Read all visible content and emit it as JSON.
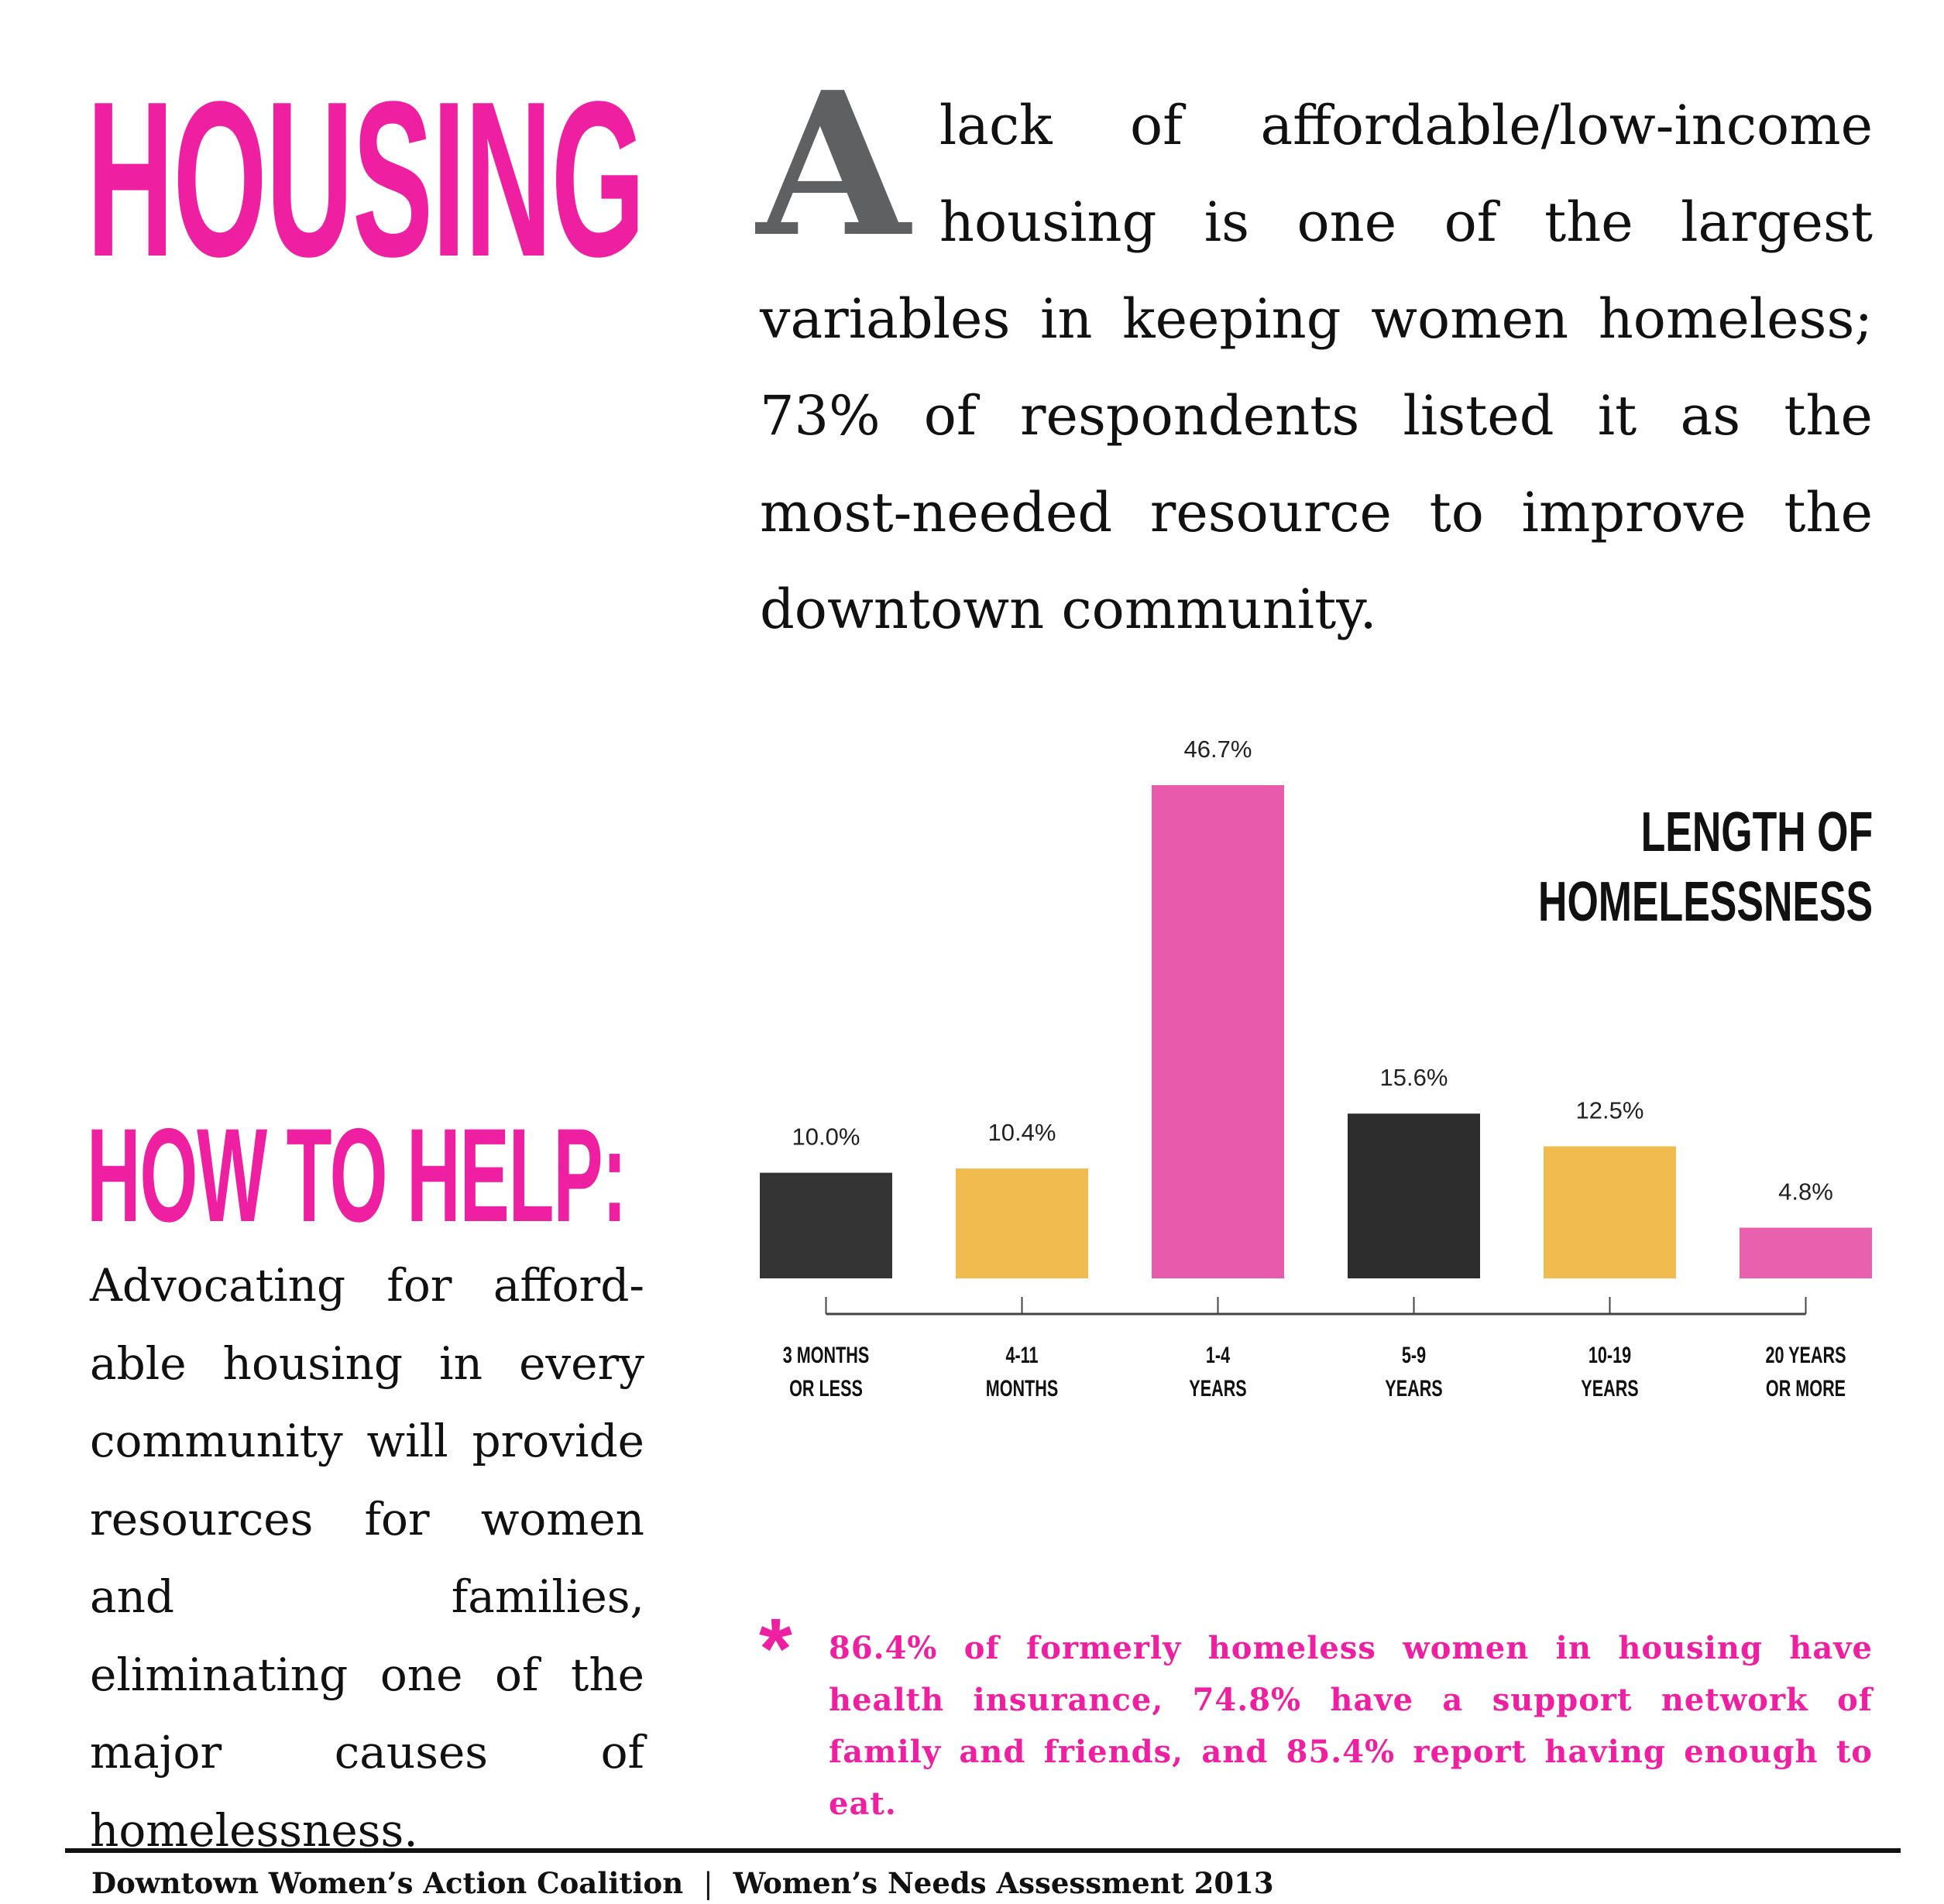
{
  "header": {
    "title": "HOUSING"
  },
  "intro": {
    "drop_cap": "A",
    "text": "lack of affordable/low-income housing is one of the largest variables in keeping women homeless; 73% of respondents listed it as the most-needed resource to improve the downtown community."
  },
  "help": {
    "title": "HOW TO HELP:",
    "text": "Advocating for afford-able housing in every community will provide resources for women and families, eliminating one of the major causes of homelessness."
  },
  "chart_data": {
    "type": "bar",
    "title_lines": [
      "LENGTH OF",
      "HOMELESSNESS"
    ],
    "categories": [
      [
        "3 MONTHS",
        "OR LESS"
      ],
      [
        "4-11",
        "MONTHS"
      ],
      [
        "1-4",
        "YEARS"
      ],
      [
        "5-9",
        "YEARS"
      ],
      [
        "10-19",
        "YEARS"
      ],
      [
        "20 YEARS",
        "OR MORE"
      ]
    ],
    "values": [
      10.0,
      10.4,
      46.7,
      15.6,
      12.5,
      4.8
    ],
    "value_labels": [
      "10.0%",
      "10.4%",
      "46.7%",
      "15.6%",
      "12.5%",
      "4.8%"
    ],
    "colors": [
      "#343434",
      "#f2bb50",
      "#e85aab",
      "#2d2d2d",
      "#f2bb50",
      "#e961ae"
    ],
    "ylim": [
      0,
      50
    ],
    "grid": false,
    "legend": "none"
  },
  "note": {
    "icon": "asterisk-icon",
    "star": "*",
    "text": "86.4% of formerly homeless women in housing have health insurance, 74.8% have a support network of family and friends, and 85.4% report having enough to eat."
  },
  "footer": {
    "org": "Downtown Women’s Action Coalition",
    "separator": "|",
    "report": "Women’s Needs Assessment 2013"
  },
  "colors": {
    "accent": "#ee1fa0",
    "drop_cap": "#5f6062"
  }
}
